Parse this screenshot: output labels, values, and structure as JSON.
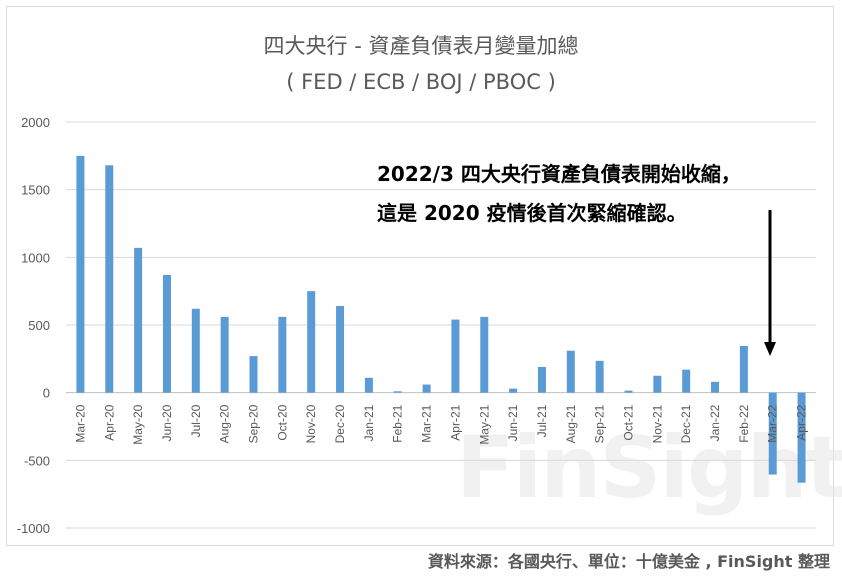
{
  "chart_data": {
    "type": "bar",
    "title": "四大央行 - 資產負債表月變量加總",
    "subtitle": "( FED / ECB / BOJ / PBOC )",
    "categories": [
      "Mar-20",
      "Apr-20",
      "May-20",
      "Jun-20",
      "Jul-20",
      "Aug-20",
      "Sep-20",
      "Oct-20",
      "Nov-20",
      "Dec-20",
      "Jan-21",
      "Feb-21",
      "Mar-21",
      "Apr-21",
      "May-21",
      "Jun-21",
      "Jul-21",
      "Aug-21",
      "Sep-21",
      "Oct-21",
      "Nov-21",
      "Dec-21",
      "Jan-22",
      "Feb-22",
      "Mar-22",
      "Apr-22"
    ],
    "values": [
      1750,
      1680,
      1070,
      870,
      620,
      560,
      270,
      560,
      750,
      640,
      110,
      10,
      60,
      540,
      560,
      30,
      190,
      310,
      235,
      15,
      125,
      170,
      80,
      345,
      -605,
      -665
    ],
    "ylim": [
      -1000,
      2000
    ],
    "yticks": [
      2000,
      1500,
      1000,
      500,
      0,
      -500,
      -1000
    ],
    "grid": true,
    "bar_color": "#5b9bd5",
    "annotations": [
      "2022/3 四大央行資產負債表開始收縮，",
      "這是 2020 疫情後首次緊縮確認。"
    ]
  },
  "source": "資料來源：各國央行、單位：十億美金 , FinSight 整理",
  "watermark": "FinSight"
}
